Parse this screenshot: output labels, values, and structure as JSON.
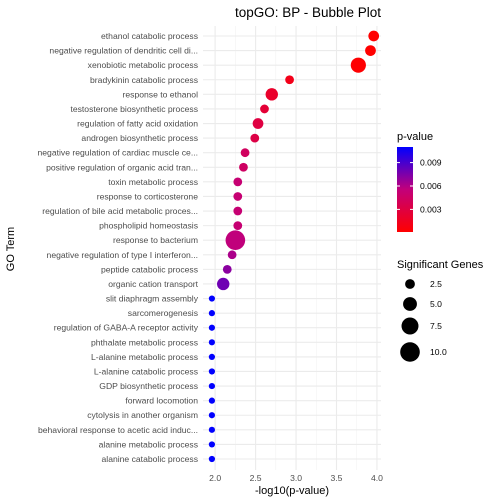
{
  "chart_data": {
    "type": "scatter",
    "title": "topGO: BP - Bubble Plot",
    "xlabel": "-log10(p-value)",
    "ylabel": "GO Term",
    "xlim": [
      1.85,
      4.05
    ],
    "xticks": [
      2.0,
      2.5,
      3.0,
      3.5,
      4.0
    ],
    "xtick_labels": [
      "2.0",
      "2.5",
      "3.0",
      "3.5",
      "4.0"
    ],
    "grid": true,
    "legend_placement": "right",
    "terms": [
      "ethanol catabolic process",
      "negative regulation of dendritic cell di...",
      "xenobiotic metabolic process",
      "bradykinin catabolic process",
      "response to ethanol",
      "testosterone biosynthetic process",
      "regulation of fatty acid oxidation",
      "androgen biosynthetic process",
      "negative regulation of cardiac muscle ce...",
      "positive regulation of organic acid tran...",
      "toxin metabolic process",
      "response to corticosterone",
      "regulation of bile acid metabolic proces...",
      "phospholipid homeostasis",
      "response to bacterium",
      "negative regulation of type I interferon...",
      "peptide catabolic process",
      "organic cation transport",
      "slit diaphragm assembly",
      "sarcomerogenesis",
      "regulation of GABA-A receptor activity",
      "phthalate metabolic process",
      "L-alanine metabolic process",
      "L-alanine catabolic process",
      "GDP biosynthetic process",
      "forward locomotion",
      "cytolysis in another organism",
      "behavioral response to acetic acid induc...",
      "alanine metabolic process",
      "alanine catabolic process"
    ],
    "x": [
      3.96,
      3.92,
      3.77,
      2.92,
      2.7,
      2.61,
      2.53,
      2.49,
      2.37,
      2.35,
      2.28,
      2.28,
      2.28,
      2.28,
      2.25,
      2.21,
      2.15,
      2.1,
      1.96,
      1.96,
      1.96,
      1.96,
      1.96,
      1.96,
      1.96,
      1.96,
      1.96,
      1.96,
      1.96,
      1.96
    ],
    "significant": [
      3,
      3,
      6,
      2,
      4,
      2,
      3,
      2,
      2,
      2,
      2,
      2,
      2,
      2,
      10,
      2,
      2,
      4,
      1,
      1,
      1,
      1,
      1,
      1,
      1,
      1,
      1,
      1,
      1,
      1
    ],
    "pvalue": [
      0.00011,
      0.00012,
      0.00017,
      0.0012,
      0.002,
      0.0025,
      0.003,
      0.0032,
      0.0043,
      0.0045,
      0.0052,
      0.0052,
      0.0052,
      0.0052,
      0.0056,
      0.0062,
      0.0071,
      0.0079,
      0.011,
      0.011,
      0.011,
      0.011,
      0.011,
      0.011,
      0.011,
      0.011,
      0.011,
      0.011,
      0.011,
      0.011
    ],
    "color_legend": {
      "title": "p-value",
      "ticks": [
        0.009,
        0.006,
        0.003
      ],
      "tick_labels": [
        "0.009",
        "0.006",
        "0.003"
      ],
      "range": [
        0.0001,
        0.011
      ],
      "low_color": "#ff0000",
      "high_color": "#0000ff"
    },
    "size_legend": {
      "title": "Significant Genes",
      "values": [
        2.5,
        5.0,
        7.5,
        10.0
      ],
      "labels": [
        "2.5",
        "5.0",
        "7.5",
        "10.0"
      ]
    }
  }
}
